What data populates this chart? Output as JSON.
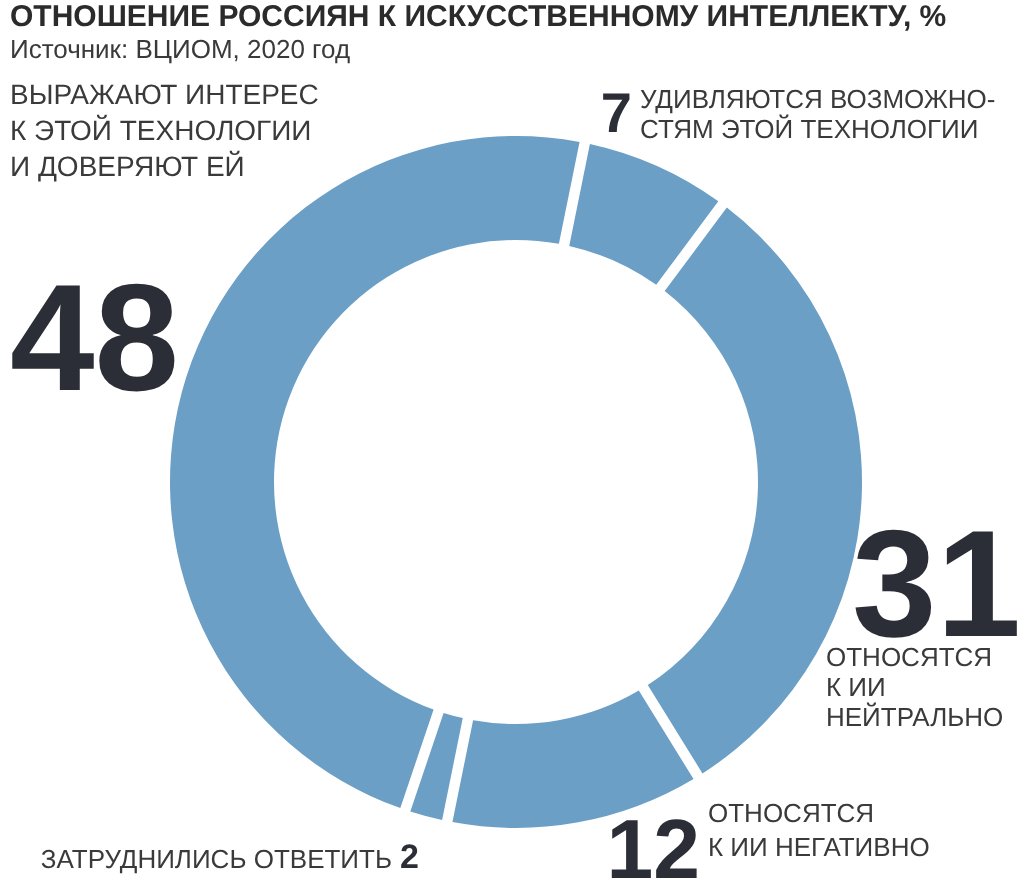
{
  "chart_data": {
    "type": "donut",
    "title": "ОТНОШЕНИЕ РОССИЯН К ИСКУССТВЕННОМУ ИНТЕЛЛЕКТУ, %",
    "annotations": [
      "Источник: ВЦИОМ, 2020 год"
    ],
    "categories": [
      "УДИВЛЯЮТСЯ ВОЗМОЖНО-\nСТЯМ ЭТОЙ ТЕХНОЛОГИИ",
      "ОТНОСЯТСЯ\nК ИИ\nНЕЙТРАЛЬНО",
      "ОТНОСЯТСЯ\nК ИИ НЕГАТИВНО",
      "ЗАТРУДНИЛИСЬ ОТВЕТИТЬ",
      "ВЫРАЖАЮТ ИНТЕРЕС\nК ЭТОЙ ТЕХНОЛОГИИ\nИ ДОВЕРЯЮТ ЕЙ"
    ],
    "values": [
      7,
      31,
      12,
      2,
      48
    ],
    "colors": [
      "#6b9fc5",
      "#6b9fc5",
      "#6b9fc5",
      "#6b9fc5",
      "#6b9fc5"
    ],
    "data_labels": true
  }
}
